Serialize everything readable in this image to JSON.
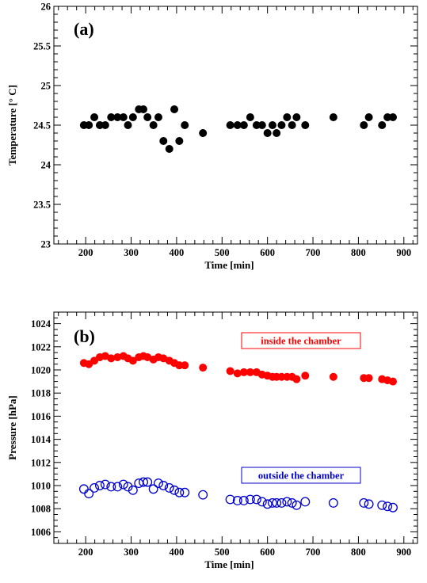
{
  "chart_data": [
    {
      "type": "scatter",
      "panel_label": "(a)",
      "xlabel": "Time [min]",
      "ylabel": "Temperature [° C]",
      "xlim": [
        130,
        930
      ],
      "ylim": [
        23,
        26
      ],
      "x_ticks": [
        200,
        300,
        400,
        500,
        600,
        700,
        800,
        900
      ],
      "y_ticks": [
        23,
        23.5,
        24,
        24.5,
        25,
        25.5,
        26
      ],
      "y_tick_labels": [
        "23",
        "23.5",
        "24",
        "24.5",
        "25",
        "25.5",
        "26"
      ],
      "grid": false,
      "series": [
        {
          "marker": "filled-circle",
          "color": "#000000",
          "points": [
            [
              196,
              24.5
            ],
            [
              207,
              24.5
            ],
            [
              219,
              24.6
            ],
            [
              231,
              24.5
            ],
            [
              243,
              24.5
            ],
            [
              256,
              24.6
            ],
            [
              270,
              24.6
            ],
            [
              283,
              24.6
            ],
            [
              293,
              24.5
            ],
            [
              304,
              24.6
            ],
            [
              317,
              24.7
            ],
            [
              327,
              24.7
            ],
            [
              336,
              24.6
            ],
            [
              349,
              24.5
            ],
            [
              360,
              24.6
            ],
            [
              371,
              24.3
            ],
            [
              384,
              24.2
            ],
            [
              395,
              24.7
            ],
            [
              406,
              24.3
            ],
            [
              418,
              24.5
            ],
            [
              458,
              24.4
            ],
            [
              518,
              24.5
            ],
            [
              534,
              24.5
            ],
            [
              548,
              24.5
            ],
            [
              562,
              24.6
            ],
            [
              576,
              24.5
            ],
            [
              588,
              24.5
            ],
            [
              600,
              24.4
            ],
            [
              611,
              24.5
            ],
            [
              620,
              24.4
            ],
            [
              631,
              24.5
            ],
            [
              643,
              24.6
            ],
            [
              654,
              24.5
            ],
            [
              664,
              24.6
            ],
            [
              683,
              24.5
            ],
            [
              745,
              24.6
            ],
            [
              812,
              24.5
            ],
            [
              823,
              24.6
            ],
            [
              852,
              24.5
            ],
            [
              864,
              24.6
            ],
            [
              876,
              24.6
            ]
          ]
        }
      ]
    },
    {
      "type": "scatter",
      "panel_label": "(b)",
      "xlabel": "Time [min]",
      "ylabel": "Pressure [hPa]",
      "xlim": [
        130,
        930
      ],
      "ylim": [
        1005,
        1025
      ],
      "x_ticks": [
        200,
        300,
        400,
        500,
        600,
        700,
        800,
        900
      ],
      "y_ticks": [
        1006,
        1008,
        1010,
        1012,
        1014,
        1016,
        1018,
        1020,
        1022,
        1024
      ],
      "y_tick_labels": [
        "1006",
        "1008",
        "1010",
        "1012",
        "1014",
        "1016",
        "1018",
        "1020",
        "1022",
        "1024"
      ],
      "grid": false,
      "series": [
        {
          "name": "inside the chamber",
          "marker": "filled-circle",
          "color": "#ff0000",
          "legend_position": "top-right",
          "points": [
            [
              196,
              1020.6
            ],
            [
              207,
              1020.5
            ],
            [
              219,
              1020.8
            ],
            [
              231,
              1021.1
            ],
            [
              243,
              1021.2
            ],
            [
              256,
              1021.0
            ],
            [
              270,
              1021.1
            ],
            [
              283,
              1021.2
            ],
            [
              293,
              1021.0
            ],
            [
              304,
              1020.8
            ],
            [
              317,
              1021.1
            ],
            [
              327,
              1021.2
            ],
            [
              336,
              1021.1
            ],
            [
              349,
              1020.9
            ],
            [
              360,
              1021.1
            ],
            [
              371,
              1021.0
            ],
            [
              384,
              1020.8
            ],
            [
              395,
              1020.6
            ],
            [
              406,
              1020.4
            ],
            [
              418,
              1020.4
            ],
            [
              458,
              1020.2
            ],
            [
              518,
              1019.9
            ],
            [
              534,
              1019.7
            ],
            [
              548,
              1019.8
            ],
            [
              562,
              1019.8
            ],
            [
              576,
              1019.8
            ],
            [
              588,
              1019.6
            ],
            [
              600,
              1019.5
            ],
            [
              611,
              1019.4
            ],
            [
              620,
              1019.4
            ],
            [
              631,
              1019.4
            ],
            [
              643,
              1019.4
            ],
            [
              654,
              1019.4
            ],
            [
              664,
              1019.2
            ],
            [
              683,
              1019.5
            ],
            [
              745,
              1019.4
            ],
            [
              812,
              1019.3
            ],
            [
              823,
              1019.3
            ],
            [
              852,
              1019.2
            ],
            [
              864,
              1019.1
            ],
            [
              876,
              1019.0
            ]
          ]
        },
        {
          "name": "outside the chamber",
          "marker": "open-circle",
          "color": "#0000cc",
          "legend_position": "center-right",
          "points": [
            [
              196,
              1009.7
            ],
            [
              207,
              1009.3
            ],
            [
              219,
              1009.8
            ],
            [
              231,
              1010.0
            ],
            [
              243,
              1010.1
            ],
            [
              256,
              1009.9
            ],
            [
              270,
              1009.9
            ],
            [
              283,
              1010.1
            ],
            [
              293,
              1009.9
            ],
            [
              304,
              1009.6
            ],
            [
              317,
              1010.2
            ],
            [
              327,
              1010.3
            ],
            [
              336,
              1010.3
            ],
            [
              349,
              1009.7
            ],
            [
              360,
              1010.2
            ],
            [
              371,
              1010.0
            ],
            [
              384,
              1009.8
            ],
            [
              395,
              1009.6
            ],
            [
              406,
              1009.4
            ],
            [
              418,
              1009.4
            ],
            [
              458,
              1009.2
            ],
            [
              518,
              1008.8
            ],
            [
              534,
              1008.7
            ],
            [
              548,
              1008.7
            ],
            [
              562,
              1008.8
            ],
            [
              576,
              1008.8
            ],
            [
              588,
              1008.6
            ],
            [
              600,
              1008.4
            ],
            [
              611,
              1008.5
            ],
            [
              620,
              1008.5
            ],
            [
              631,
              1008.5
            ],
            [
              643,
              1008.6
            ],
            [
              654,
              1008.5
            ],
            [
              664,
              1008.3
            ],
            [
              683,
              1008.6
            ],
            [
              745,
              1008.5
            ],
            [
              812,
              1008.5
            ],
            [
              823,
              1008.4
            ],
            [
              852,
              1008.3
            ],
            [
              864,
              1008.2
            ],
            [
              876,
              1008.1
            ]
          ]
        }
      ]
    }
  ]
}
